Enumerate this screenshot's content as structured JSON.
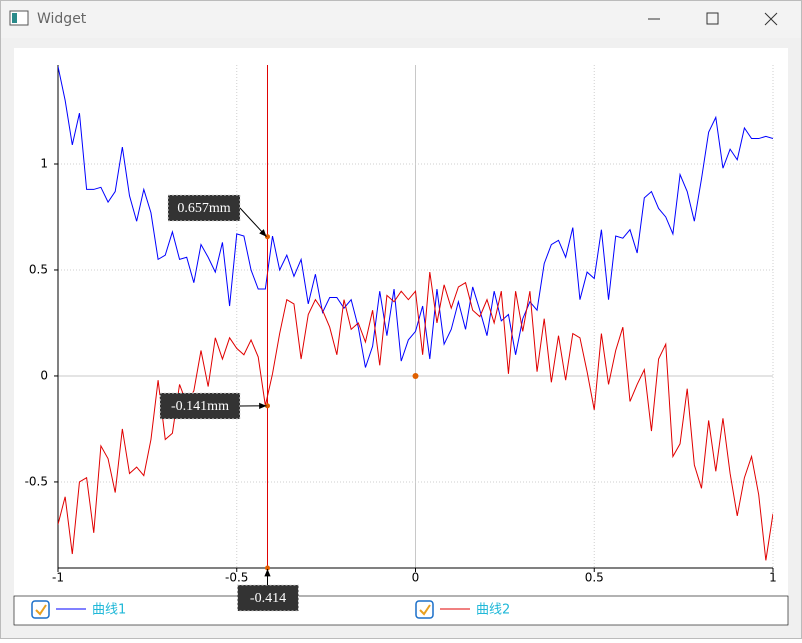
{
  "window": {
    "title": "Widget"
  },
  "chart_data": {
    "type": "line",
    "x": [
      -1,
      -0.98,
      -0.96,
      -0.94,
      -0.92,
      -0.9,
      -0.88,
      -0.86,
      -0.84,
      -0.82,
      -0.8,
      -0.78,
      -0.76,
      -0.74,
      -0.72,
      -0.7,
      -0.68,
      -0.66,
      -0.64,
      -0.62,
      -0.6,
      -0.58,
      -0.56,
      -0.54,
      -0.52,
      -0.5,
      -0.48,
      -0.46,
      -0.44,
      -0.42,
      -0.4,
      -0.38,
      -0.36,
      -0.34,
      -0.32,
      -0.3,
      -0.28,
      -0.26,
      -0.24,
      -0.22,
      -0.2,
      -0.18,
      -0.16,
      -0.14,
      -0.12,
      -0.1,
      -0.08,
      -0.06,
      -0.04,
      -0.02,
      0,
      0.02,
      0.04,
      0.06,
      0.08,
      0.1,
      0.12,
      0.14,
      0.16,
      0.18,
      0.2,
      0.22,
      0.24,
      0.26,
      0.28,
      0.3,
      0.32,
      0.34,
      0.36,
      0.38,
      0.4,
      0.42,
      0.44,
      0.46,
      0.48,
      0.5,
      0.52,
      0.54,
      0.56,
      0.58,
      0.6,
      0.62,
      0.64,
      0.66,
      0.68,
      0.7,
      0.72,
      0.74,
      0.76,
      0.78,
      0.8,
      0.82,
      0.84,
      0.86,
      0.88,
      0.9,
      0.92,
      0.94,
      0.96,
      0.98,
      1
    ],
    "series": [
      {
        "name": "曲线1",
        "color": "#0000ff",
        "values": [
          1.46,
          1.3,
          1.09,
          1.24,
          0.88,
          0.88,
          0.89,
          0.82,
          0.87,
          1.08,
          0.85,
          0.73,
          0.88,
          0.77,
          0.55,
          0.57,
          0.68,
          0.55,
          0.56,
          0.44,
          0.62,
          0.56,
          0.49,
          0.63,
          0.33,
          0.67,
          0.66,
          0.5,
          0.41,
          0.41,
          0.66,
          0.5,
          0.57,
          0.47,
          0.55,
          0.34,
          0.48,
          0.3,
          0.37,
          0.37,
          0.32,
          0.36,
          0.23,
          0.04,
          0.14,
          0.4,
          0.19,
          0.41,
          0.07,
          0.17,
          0.21,
          0.33,
          0.08,
          0.41,
          0.15,
          0.22,
          0.35,
          0.22,
          0.42,
          0.31,
          0.19,
          0.4,
          0.26,
          0.29,
          0.1,
          0.27,
          0.35,
          0.31,
          0.53,
          0.62,
          0.64,
          0.56,
          0.7,
          0.36,
          0.49,
          0.46,
          0.69,
          0.36,
          0.66,
          0.65,
          0.69,
          0.58,
          0.84,
          0.87,
          0.79,
          0.75,
          0.67,
          0.95,
          0.87,
          0.73,
          0.93,
          1.15,
          1.22,
          0.98,
          1.07,
          1.02,
          1.17,
          1.12,
          1.12,
          1.13,
          1.12
        ]
      },
      {
        "name": "曲线2",
        "color": "#e00000",
        "values": [
          -0.7,
          -0.57,
          -0.84,
          -0.5,
          -0.48,
          -0.74,
          -0.33,
          -0.39,
          -0.55,
          -0.25,
          -0.46,
          -0.43,
          -0.47,
          -0.3,
          -0.02,
          -0.3,
          -0.27,
          -0.04,
          -0.13,
          -0.07,
          0.12,
          -0.05,
          0.18,
          0.08,
          0.18,
          0.13,
          0.1,
          0.17,
          0.09,
          -0.14,
          0.01,
          0.2,
          0.36,
          0.34,
          0.08,
          0.29,
          0.36,
          0.31,
          0.23,
          0.1,
          0.36,
          0.22,
          0.25,
          0.16,
          0.31,
          0.05,
          0.38,
          0.35,
          0.4,
          0.36,
          0.4,
          0.1,
          0.49,
          0.25,
          0.43,
          0.32,
          0.42,
          0.44,
          0.31,
          0.28,
          0.36,
          0.25,
          0.4,
          0.01,
          0.4,
          0.21,
          0.4,
          0.02,
          0.27,
          -0.03,
          0.19,
          -0.02,
          0.2,
          0.18,
          0.02,
          -0.16,
          0.2,
          -0.04,
          0.12,
          0.23,
          -0.12,
          -0.04,
          0.03,
          -0.26,
          0.08,
          0.15,
          -0.38,
          -0.32,
          -0.06,
          -0.42,
          -0.53,
          -0.21,
          -0.45,
          -0.2,
          -0.46,
          -0.66,
          -0.48,
          -0.38,
          -0.56,
          -0.87,
          -0.65
        ]
      }
    ],
    "xlim": [
      -1,
      1
    ],
    "ylim": [
      -0.906,
      1.467
    ],
    "xticks": [
      -1,
      -0.5,
      0,
      0.5,
      1
    ],
    "yticks": [
      -0.5,
      0,
      0.5,
      1
    ],
    "grid": true,
    "cursor": {
      "x": -0.414,
      "label": "-0.414",
      "color": "#e00000",
      "points": [
        {
          "y": 0.657,
          "label": "0.657mm"
        },
        {
          "y": -0.141,
          "label": "-0.141mm"
        }
      ]
    },
    "marker": {
      "x": 0,
      "y": 0,
      "color": "#e06000"
    }
  }
}
